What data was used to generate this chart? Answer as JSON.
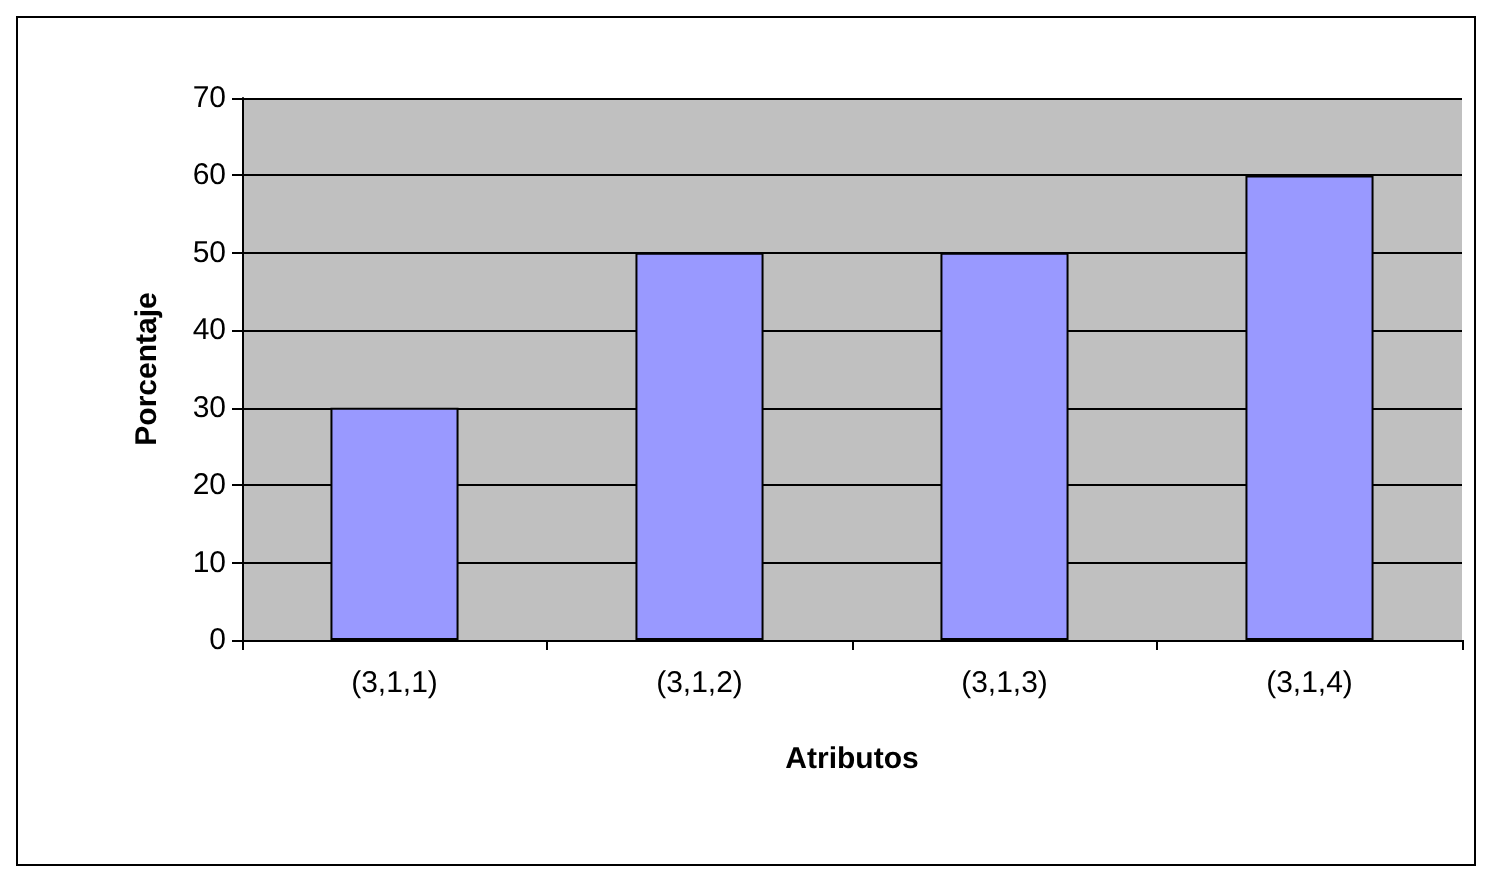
{
  "chart_data": {
    "type": "bar",
    "xlabel": "Atributos",
    "ylabel": "Porcentaje",
    "categories": [
      "(3,1,1)",
      "(3,1,2)",
      "(3,1,3)",
      "(3,1,4)"
    ],
    "values": [
      30,
      50,
      50,
      60
    ],
    "color": "#9999ff",
    "ylim": [
      0,
      70
    ],
    "yticks": [
      0,
      10,
      20,
      30,
      40,
      50,
      60,
      70
    ],
    "grid": "y"
  }
}
